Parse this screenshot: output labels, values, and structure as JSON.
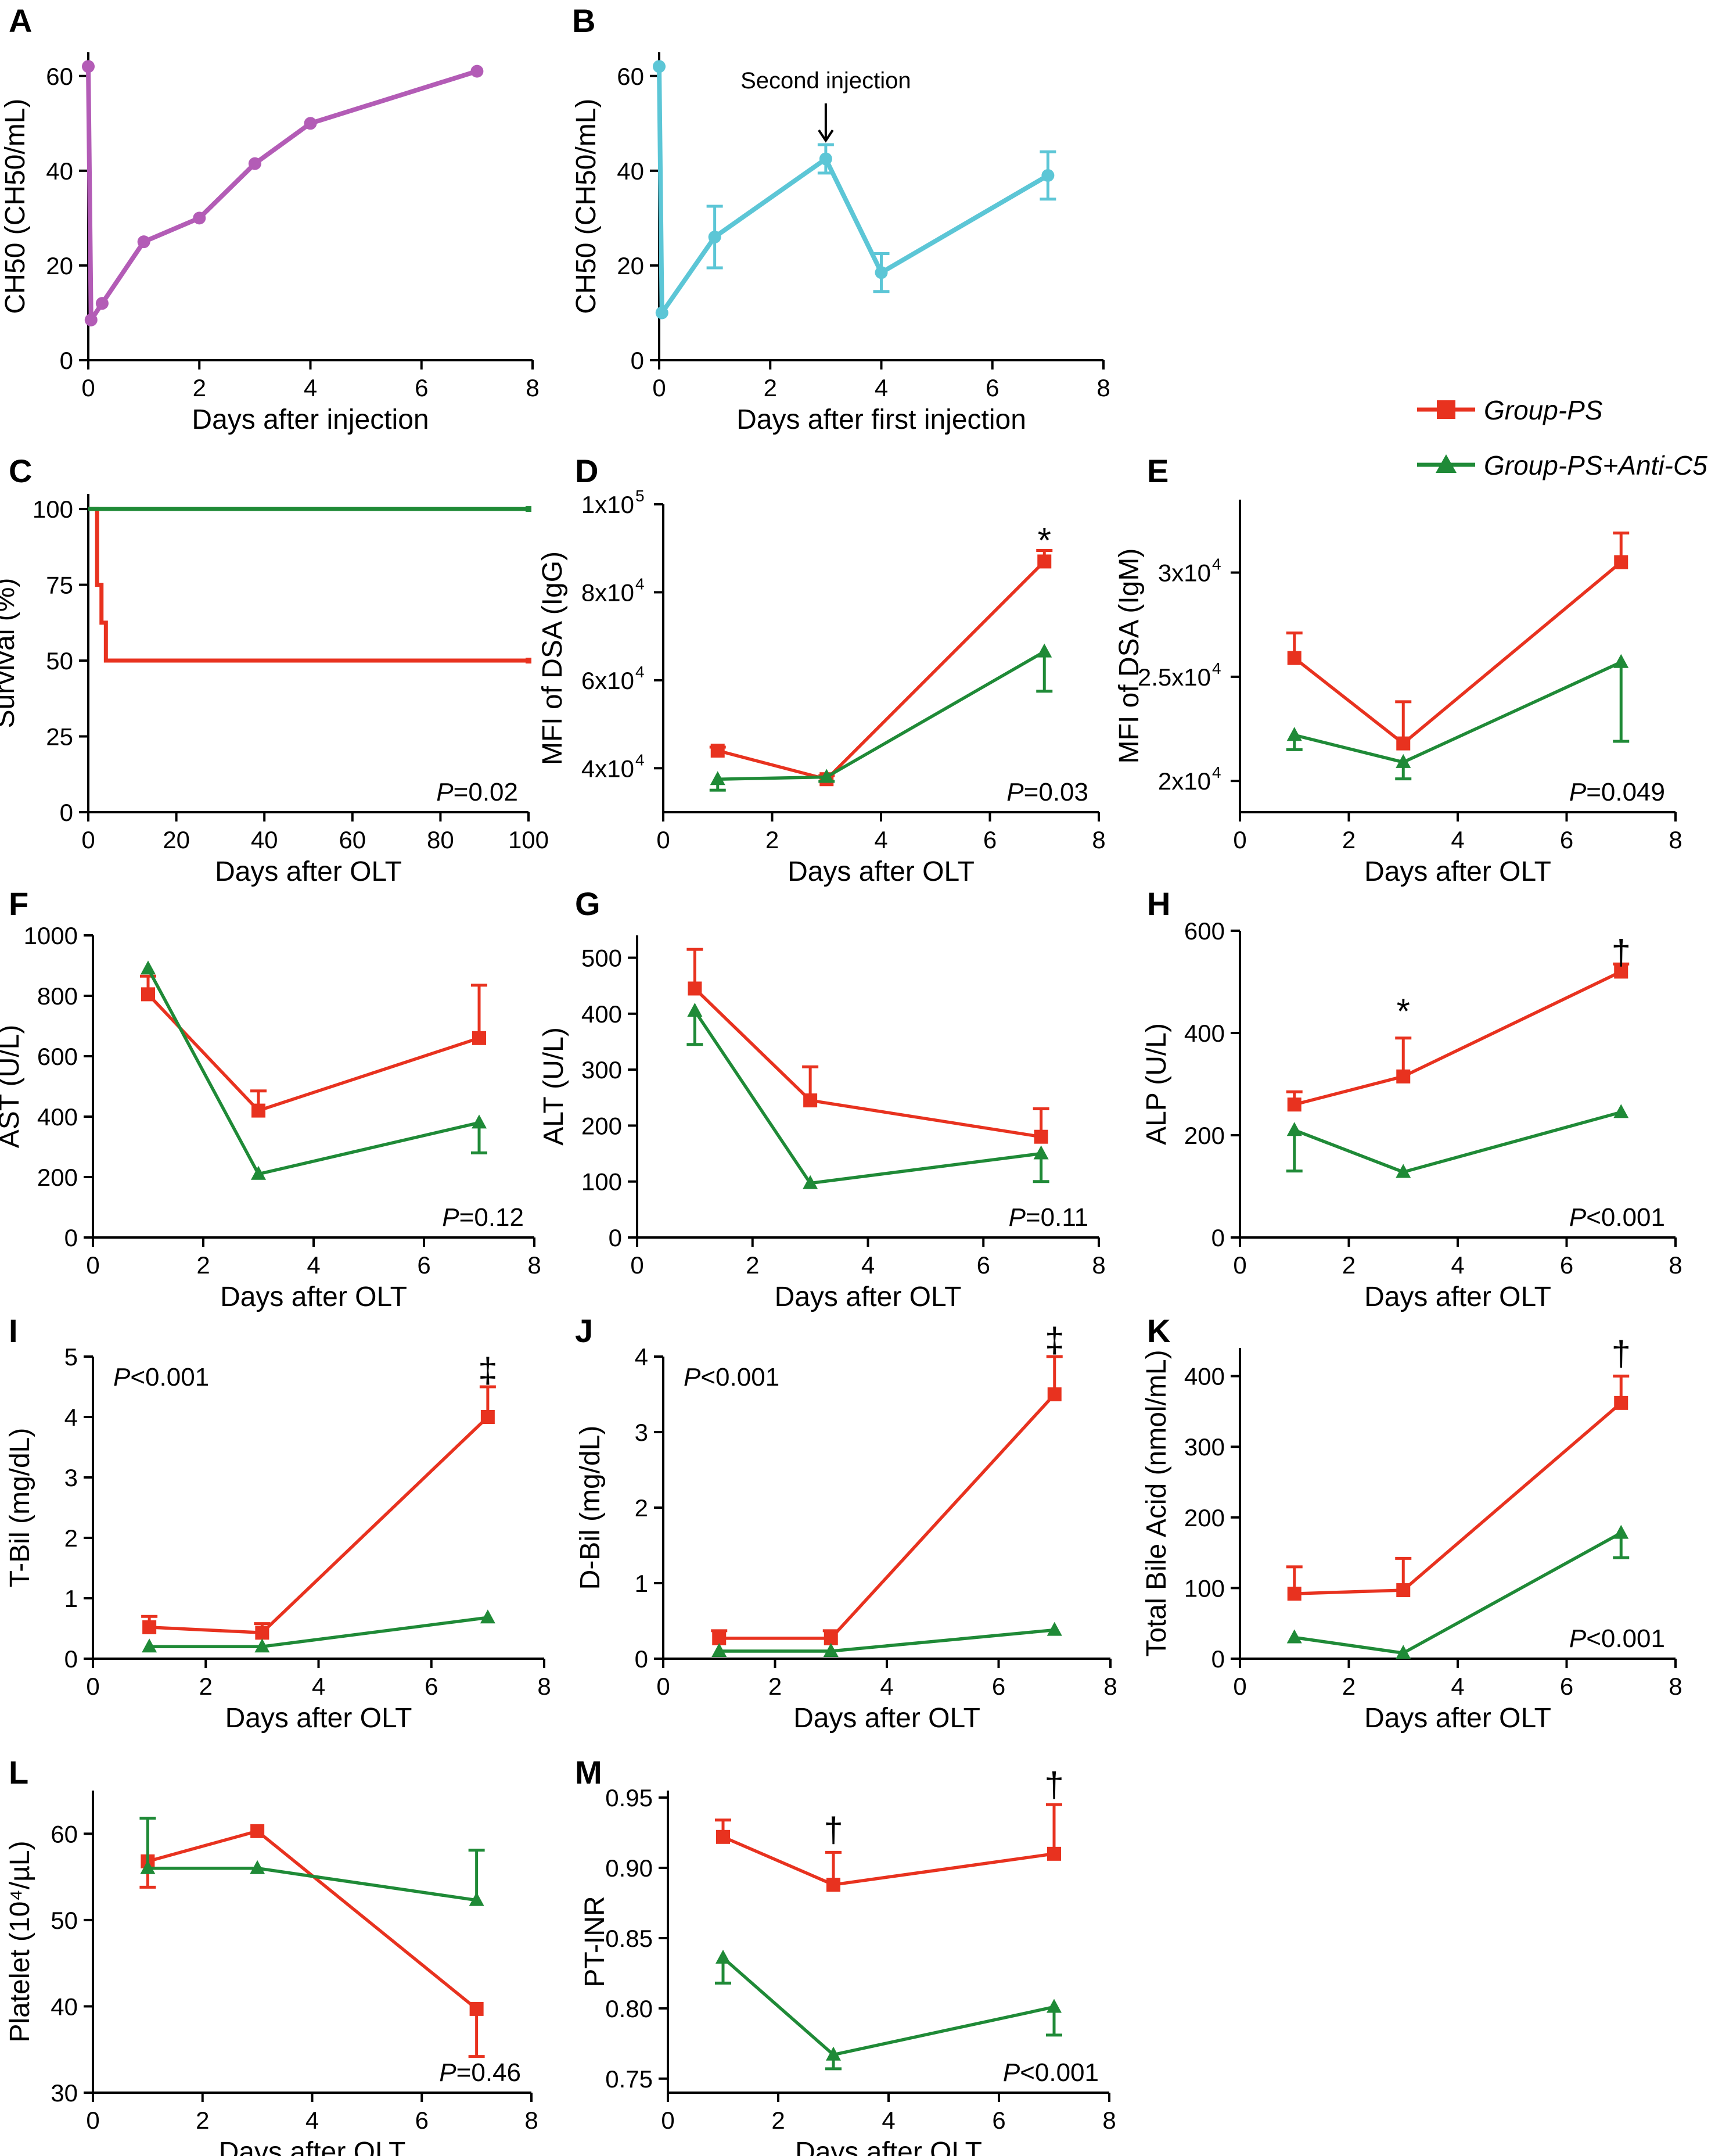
{
  "colors": {
    "ps": "#e8321f",
    "anti": "#1f8a37",
    "purple": "#b35cb6",
    "cyan": "#5cc6d6",
    "axis": "#000000"
  },
  "legend": {
    "ps": "Group-PS",
    "anti": "Group-PS+Anti-C5"
  },
  "chart_data": [
    {
      "id": "A",
      "type": "line",
      "letter": "A",
      "xlabel": "Days after injection",
      "ylabel": "CH50 (CH50/mL)",
      "xlim": [
        0,
        8
      ],
      "ylim": [
        0,
        65
      ],
      "xticks": [
        0,
        2,
        4,
        6,
        8
      ],
      "xtick_labels": [
        "0",
        "2",
        "4",
        "6",
        "8"
      ],
      "yticks": [
        0,
        20,
        40,
        60
      ],
      "ytick_labels": [
        "0",
        "20",
        "40",
        "60"
      ],
      "series": [
        {
          "name": "CH50",
          "color": "purple",
          "marker": "circle",
          "x": [
            0,
            0.05,
            0.25,
            1,
            2,
            3,
            4,
            7
          ],
          "y": [
            62,
            8.5,
            12,
            25,
            30,
            41.5,
            50,
            61
          ],
          "err": [
            0,
            0,
            0,
            0,
            0,
            0,
            0,
            0
          ]
        }
      ]
    },
    {
      "id": "B",
      "type": "line",
      "letter": "B",
      "xlabel": "Days after first injection",
      "ylabel": "CH50 (CH50/mL)",
      "xlim": [
        0,
        8
      ],
      "ylim": [
        0,
        65
      ],
      "xticks": [
        0,
        2,
        4,
        6,
        8
      ],
      "xtick_labels": [
        "0",
        "2",
        "4",
        "6",
        "8"
      ],
      "yticks": [
        0,
        20,
        40,
        60
      ],
      "ytick_labels": [
        "0",
        "20",
        "40",
        "60"
      ],
      "annotation": {
        "text": "Second injection",
        "x": 3,
        "y": 50
      },
      "series": [
        {
          "name": "CH50",
          "color": "cyan",
          "marker": "circle",
          "x": [
            0,
            0.05,
            1,
            3,
            4,
            7
          ],
          "y": [
            62,
            10,
            26,
            42.5,
            18.5,
            39
          ],
          "err": [
            0,
            0,
            6.5,
            3,
            4,
            5
          ]
        }
      ]
    },
    {
      "id": "C",
      "type": "step",
      "letter": "C",
      "xlabel": "Days after OLT",
      "ylabel": "Survival (%)",
      "xlim": [
        0,
        100
      ],
      "ylim": [
        0,
        105
      ],
      "xticks": [
        0,
        20,
        40,
        60,
        80,
        100
      ],
      "xtick_labels": [
        "0",
        "20",
        "40",
        "60",
        "80",
        "100"
      ],
      "yticks": [
        0,
        25,
        50,
        75,
        100
      ],
      "ytick_labels": [
        "0",
        "25",
        "50",
        "75",
        "100"
      ],
      "pvalue": {
        "label": "P",
        "value": "=0.02"
      },
      "series": [
        {
          "name": "Group-PS",
          "color": "ps",
          "x": [
            0,
            2,
            2,
            3,
            3,
            4,
            4,
            100
          ],
          "y": [
            100,
            100,
            75,
            75,
            62.5,
            62.5,
            50,
            50
          ]
        },
        {
          "name": "Group-PS+Anti-C5",
          "color": "anti",
          "x": [
            0,
            100
          ],
          "y": [
            100,
            100
          ]
        }
      ]
    },
    {
      "id": "D",
      "type": "line",
      "letter": "D",
      "xlabel": "Days after OLT",
      "ylabel": "MFI of DSA (IgG)",
      "xlim": [
        0,
        8
      ],
      "ylim": [
        30000,
        100000
      ],
      "xticks": [
        0,
        2,
        4,
        6,
        8
      ],
      "xtick_labels": [
        "0",
        "2",
        "4",
        "6",
        "8"
      ],
      "yticks": [
        40000,
        60000,
        80000,
        100000
      ],
      "ytick_labels": [
        "4x10",
        "6x10",
        "8x10",
        "1x10"
      ],
      "ytick_sup": [
        "4",
        "4",
        "4",
        "5"
      ],
      "pvalue": {
        "label": "P",
        "value": "=0.03"
      },
      "marks": [
        {
          "text": "*",
          "x": 7,
          "y": 91500
        }
      ],
      "series": [
        {
          "name": "Group-PS",
          "color": "ps",
          "marker": "square",
          "x": [
            1,
            3,
            7
          ],
          "y": [
            44000,
            37500,
            87000
          ],
          "err": [
            800,
            800,
            2500
          ],
          "errdir": "up"
        },
        {
          "name": "Group-PS+Anti-C5",
          "color": "anti",
          "marker": "triangle",
          "x": [
            1,
            3,
            7
          ],
          "y": [
            37500,
            38000,
            66500
          ],
          "err": [
            2500,
            1000,
            9000
          ],
          "errdir": "down"
        }
      ]
    },
    {
      "id": "E",
      "type": "line",
      "letter": "E",
      "xlabel": "Days after OLT",
      "ylabel": "MFI of DSA (IgM)",
      "xlim": [
        0,
        8
      ],
      "ylim": [
        18500,
        33500
      ],
      "xticks": [
        0,
        2,
        4,
        6,
        8
      ],
      "xtick_labels": [
        "0",
        "2",
        "4",
        "6",
        "8"
      ],
      "yticks": [
        20000,
        25000,
        30000
      ],
      "ytick_labels": [
        "2x10",
        "2.5x10",
        "3x10"
      ],
      "ytick_sup": [
        "4",
        "4",
        "4"
      ],
      "pvalue": {
        "label": "P",
        "value": "=0.049"
      },
      "series": [
        {
          "name": "Group-PS",
          "color": "ps",
          "marker": "square",
          "x": [
            1,
            3,
            7
          ],
          "y": [
            25900,
            21800,
            30500
          ],
          "err": [
            1200,
            2000,
            1400
          ],
          "errdir": "up"
        },
        {
          "name": "Group-PS+Anti-C5",
          "color": "anti",
          "marker": "triangle",
          "x": [
            1,
            3,
            7
          ],
          "y": [
            22200,
            20900,
            25700
          ],
          "err": [
            700,
            800,
            3800
          ],
          "errdir": "down"
        }
      ]
    },
    {
      "id": "F",
      "type": "line",
      "letter": "F",
      "xlabel": "Days after OLT",
      "ylabel": "AST (U/L)",
      "xlim": [
        0,
        8
      ],
      "ylim": [
        0,
        1000
      ],
      "xticks": [
        0,
        2,
        4,
        6,
        8
      ],
      "xtick_labels": [
        "0",
        "2",
        "4",
        "6",
        "8"
      ],
      "yticks": [
        0,
        200,
        400,
        600,
        800,
        1000
      ],
      "ytick_labels": [
        "0",
        "200",
        "400",
        "600",
        "800",
        "1000"
      ],
      "pvalue": {
        "label": "P",
        "value": "=0.12"
      },
      "series": [
        {
          "name": "Group-PS",
          "color": "ps",
          "marker": "square",
          "x": [
            1,
            3,
            7
          ],
          "y": [
            805,
            420,
            660
          ],
          "err": [
            60,
            65,
            175
          ],
          "errdir": "up"
        },
        {
          "name": "Group-PS+Anti-C5",
          "color": "anti",
          "marker": "triangle",
          "x": [
            1,
            3,
            7
          ],
          "y": [
            890,
            210,
            380
          ],
          "err": [
            0,
            0,
            100
          ],
          "errdir": "down"
        }
      ]
    },
    {
      "id": "G",
      "type": "line",
      "letter": "G",
      "xlabel": "Days after OLT",
      "ylabel": "ALT (U/L)",
      "xlim": [
        0,
        8
      ],
      "ylim": [
        0,
        540
      ],
      "xticks": [
        0,
        2,
        4,
        6,
        8
      ],
      "xtick_labels": [
        "0",
        "2",
        "4",
        "6",
        "8"
      ],
      "yticks": [
        0,
        100,
        200,
        300,
        400,
        500
      ],
      "ytick_labels": [
        "0",
        "100",
        "200",
        "300",
        "400",
        "500"
      ],
      "pvalue": {
        "label": "P",
        "value": "=0.11"
      },
      "series": [
        {
          "name": "Group-PS",
          "color": "ps",
          "marker": "square",
          "x": [
            1,
            3,
            7
          ],
          "y": [
            445,
            245,
            180
          ],
          "err": [
            70,
            60,
            50
          ],
          "errdir": "up"
        },
        {
          "name": "Group-PS+Anti-C5",
          "color": "anti",
          "marker": "triangle",
          "x": [
            1,
            3,
            7
          ],
          "y": [
            405,
            97,
            150
          ],
          "err": [
            60,
            0,
            50
          ],
          "errdir": "down"
        }
      ]
    },
    {
      "id": "H",
      "type": "line",
      "letter": "H",
      "xlabel": "Days after OLT",
      "ylabel": "ALP (U/L)",
      "xlim": [
        0,
        8
      ],
      "ylim": [
        0,
        600
      ],
      "xticks": [
        0,
        2,
        4,
        6,
        8
      ],
      "xtick_labels": [
        "0",
        "2",
        "4",
        "6",
        "8"
      ],
      "yticks": [
        0,
        200,
        400,
        600
      ],
      "ytick_labels": [
        "0",
        "200",
        "400",
        "600"
      ],
      "pvalue": {
        "label": "P",
        "value": "<0.001"
      },
      "marks": [
        {
          "text": "*",
          "x": 3,
          "y": 440
        },
        {
          "text": "†",
          "x": 7,
          "y": 555
        }
      ],
      "series": [
        {
          "name": "Group-PS",
          "color": "ps",
          "marker": "square",
          "x": [
            1,
            3,
            7
          ],
          "y": [
            260,
            315,
            520
          ],
          "err": [
            25,
            75,
            15
          ],
          "errdir": "up"
        },
        {
          "name": "Group-PS+Anti-C5",
          "color": "anti",
          "marker": "triangle",
          "x": [
            1,
            3,
            7
          ],
          "y": [
            210,
            128,
            245
          ],
          "err": [
            80,
            0,
            0
          ],
          "errdir": "down"
        }
      ]
    },
    {
      "id": "I",
      "type": "line",
      "letter": "I",
      "xlabel": "Days after OLT",
      "ylabel": "T-Bil (mg/dL)",
      "xlim": [
        0,
        8
      ],
      "ylim": [
        0,
        5
      ],
      "xticks": [
        0,
        2,
        4,
        6,
        8
      ],
      "xtick_labels": [
        "0",
        "2",
        "4",
        "6",
        "8"
      ],
      "yticks": [
        0,
        1,
        2,
        3,
        4,
        5
      ],
      "ytick_labels": [
        "0",
        "1",
        "2",
        "3",
        "4",
        "5"
      ],
      "pvalue": {
        "label": "P",
        "value": "<0.001",
        "pos": "top-left"
      },
      "marks": [
        {
          "text": "‡",
          "x": 7,
          "y": 4.75
        }
      ],
      "series": [
        {
          "name": "Group-PS",
          "color": "ps",
          "marker": "square",
          "x": [
            1,
            3,
            7
          ],
          "y": [
            0.52,
            0.43,
            4.0
          ],
          "err": [
            0.18,
            0.15,
            0.5
          ],
          "errdir": "up"
        },
        {
          "name": "Group-PS+Anti-C5",
          "color": "anti",
          "marker": "triangle",
          "x": [
            1,
            3,
            7
          ],
          "y": [
            0.2,
            0.2,
            0.68
          ],
          "err": [
            0,
            0,
            0
          ],
          "errdir": "down"
        }
      ]
    },
    {
      "id": "J",
      "type": "line",
      "letter": "J",
      "xlabel": "Days after OLT",
      "ylabel": "D-Bil (mg/dL)",
      "xlim": [
        0,
        8
      ],
      "ylim": [
        0,
        4
      ],
      "xticks": [
        0,
        2,
        4,
        6,
        8
      ],
      "xtick_labels": [
        "0",
        "2",
        "4",
        "6",
        "8"
      ],
      "yticks": [
        0,
        1,
        2,
        3,
        4
      ],
      "ytick_labels": [
        "0",
        "1",
        "2",
        "3",
        "4"
      ],
      "pvalue": {
        "label": "P",
        "value": "<0.001",
        "pos": "top-left"
      },
      "marks": [
        {
          "text": "‡",
          "x": 7,
          "y": 4.2
        }
      ],
      "series": [
        {
          "name": "Group-PS",
          "color": "ps",
          "marker": "square",
          "x": [
            1,
            3,
            7
          ],
          "y": [
            0.27,
            0.27,
            3.5
          ],
          "err": [
            0.1,
            0.1,
            0.5
          ],
          "errdir": "up"
        },
        {
          "name": "Group-PS+Anti-C5",
          "color": "anti",
          "marker": "triangle",
          "x": [
            1,
            3,
            7
          ],
          "y": [
            0.1,
            0.1,
            0.38
          ],
          "err": [
            0,
            0,
            0
          ],
          "errdir": "down"
        }
      ]
    },
    {
      "id": "K",
      "type": "line",
      "letter": "K",
      "xlabel": "Days after OLT",
      "ylabel": "Total Bile Acid (nmol/mL)",
      "xlim": [
        0,
        8
      ],
      "ylim": [
        0,
        440
      ],
      "xticks": [
        0,
        2,
        4,
        6,
        8
      ],
      "xtick_labels": [
        "0",
        "2",
        "4",
        "6",
        "8"
      ],
      "yticks": [
        0,
        100,
        200,
        300,
        400
      ],
      "ytick_labels": [
        "0",
        "100",
        "200",
        "300",
        "400"
      ],
      "pvalue": {
        "label": "P",
        "value": "<0.001"
      },
      "marks": [
        {
          "text": "†",
          "x": 7,
          "y": 430
        }
      ],
      "series": [
        {
          "name": "Group-PS",
          "color": "ps",
          "marker": "square",
          "x": [
            1,
            3,
            7
          ],
          "y": [
            92,
            97,
            362
          ],
          "err": [
            38,
            45,
            38
          ],
          "errdir": "up"
        },
        {
          "name": "Group-PS+Anti-C5",
          "color": "anti",
          "marker": "triangle",
          "x": [
            1,
            3,
            7
          ],
          "y": [
            30,
            8,
            178
          ],
          "err": [
            0,
            0,
            35
          ],
          "errdir": "down"
        }
      ]
    },
    {
      "id": "L",
      "type": "line",
      "letter": "L",
      "xlabel": "Days after OLT",
      "ylabel": "Platelet (10⁴/µL)",
      "xlim": [
        0,
        8
      ],
      "ylim": [
        30,
        65
      ],
      "xticks": [
        0,
        2,
        4,
        6,
        8
      ],
      "xtick_labels": [
        "0",
        "2",
        "4",
        "6",
        "8"
      ],
      "yticks": [
        30,
        40,
        50,
        60
      ],
      "ytick_labels": [
        "30",
        "40",
        "50",
        "60"
      ],
      "pvalue": {
        "label": "P",
        "value": "=0.46"
      },
      "series": [
        {
          "name": "Group-PS",
          "color": "ps",
          "marker": "square",
          "x": [
            1,
            3,
            7
          ],
          "y": [
            56.8,
            60.3,
            39.7
          ],
          "err": [
            3,
            0,
            5.5
          ],
          "errdir": "down"
        },
        {
          "name": "Group-PS+Anti-C5",
          "color": "anti",
          "marker": "triangle",
          "x": [
            1,
            3,
            7
          ],
          "y": [
            56,
            56,
            52.3
          ],
          "err": [
            5.8,
            0,
            5.8
          ],
          "errdir": "up"
        }
      ]
    },
    {
      "id": "M",
      "type": "line",
      "letter": "M",
      "xlabel": "Days after OLT",
      "ylabel": "PT-INR",
      "xlim": [
        0,
        8
      ],
      "ylim": [
        0.74,
        0.955
      ],
      "xticks": [
        0,
        2,
        4,
        6,
        8
      ],
      "xtick_labels": [
        "0",
        "2",
        "4",
        "6",
        "8"
      ],
      "yticks": [
        0.75,
        0.8,
        0.85,
        0.9,
        0.95
      ],
      "ytick_labels": [
        "0.75",
        "0.80",
        "0.85",
        "0.90",
        "0.95"
      ],
      "pvalue": {
        "label": "P",
        "value": "<0.001"
      },
      "marks": [
        {
          "text": "†",
          "x": 3,
          "y": 0.926
        },
        {
          "text": "†",
          "x": 7,
          "y": 0.958
        }
      ],
      "series": [
        {
          "name": "Group-PS",
          "color": "ps",
          "marker": "square",
          "x": [
            1,
            3,
            7
          ],
          "y": [
            0.922,
            0.888,
            0.91
          ],
          "err": [
            0.012,
            0.023,
            0.035
          ],
          "errdir": "up"
        },
        {
          "name": "Group-PS+Anti-C5",
          "color": "anti",
          "marker": "triangle",
          "x": [
            1,
            3,
            7
          ],
          "y": [
            0.836,
            0.767,
            0.801
          ],
          "err": [
            0.018,
            0.01,
            0.02
          ],
          "errdir": "down"
        }
      ]
    }
  ]
}
